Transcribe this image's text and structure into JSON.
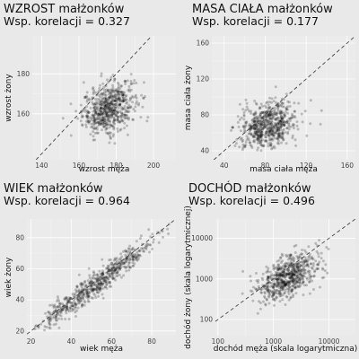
{
  "chart_data": [
    {
      "type": "scatter",
      "title": "WZROST małżonków",
      "subtitle": "Wsp. korelacji = 0.327",
      "xlabel": "wzrost męża",
      "ylabel": "wzrost żony",
      "xlim": [
        135,
        212
      ],
      "ylim": [
        137,
        199
      ],
      "xticks": [
        140,
        160,
        180,
        200
      ],
      "yticks": [
        160,
        180
      ],
      "log": false,
      "diagonal": true,
      "sample": {
        "n": 650,
        "mx": 176,
        "sx": 7,
        "my": 163,
        "sy": 6.5,
        "r": 0.327,
        "xmin": 148,
        "xmax": 205,
        "ymin": 140,
        "ymax": 192
      }
    },
    {
      "type": "scatter",
      "title": "MASA CIAŁA małżonków",
      "subtitle": "Wsp. korelacji = 0.177",
      "xlabel": "masa ciała męża",
      "ylabel": "masa ciała żony",
      "xlim": [
        28,
        168
      ],
      "ylim": [
        30,
        168
      ],
      "xticks": [
        40,
        80,
        120,
        160
      ],
      "yticks": [
        40,
        80,
        120,
        160
      ],
      "log": false,
      "diagonal": true,
      "sample": {
        "n": 650,
        "mx": 82,
        "sx": 14,
        "my": 68,
        "sy": 13,
        "r": 0.177,
        "xmin": 45,
        "xmax": 150,
        "ymin": 40,
        "ymax": 135
      }
    },
    {
      "type": "scatter",
      "title": "WIEK małżonków",
      "subtitle": "Wsp. korelacji = 0.964",
      "xlabel": "wiek męża",
      "ylabel": "wiek żony",
      "xlim": [
        18,
        92
      ],
      "ylim": [
        17,
        92
      ],
      "xticks": [
        20,
        40,
        60,
        80
      ],
      "yticks": [
        20,
        40,
        60,
        80
      ],
      "log": false,
      "diagonal": true,
      "sample": {
        "n": 650,
        "mx": 52,
        "sx": 15,
        "my": 50,
        "sy": 15,
        "r": 0.964,
        "xmin": 20,
        "xmax": 90,
        "ymin": 18,
        "ymax": 90
      }
    },
    {
      "type": "scatter",
      "title": "DOCHÓD małżonków",
      "subtitle": "Wsp. korelacji = 0.496",
      "xlabel": "dochód męża (skala logarytmiczna)",
      "ylabel": "dochód żony (skala logarytmicznej)",
      "xlim": [
        90,
        30000
      ],
      "ylim": [
        40,
        30000
      ],
      "xticks": [
        100,
        1000,
        10000
      ],
      "yticks": [
        100,
        1000,
        10000
      ],
      "log": true,
      "diagonal": true,
      "sample": {
        "n": 650,
        "mx": 3.25,
        "sx": 0.28,
        "my": 3.05,
        "sy": 0.3,
        "r": 0.496,
        "xmin": 2.3,
        "xmax": 4.3,
        "ymin": 2.0,
        "ymax": 4.2
      }
    }
  ]
}
